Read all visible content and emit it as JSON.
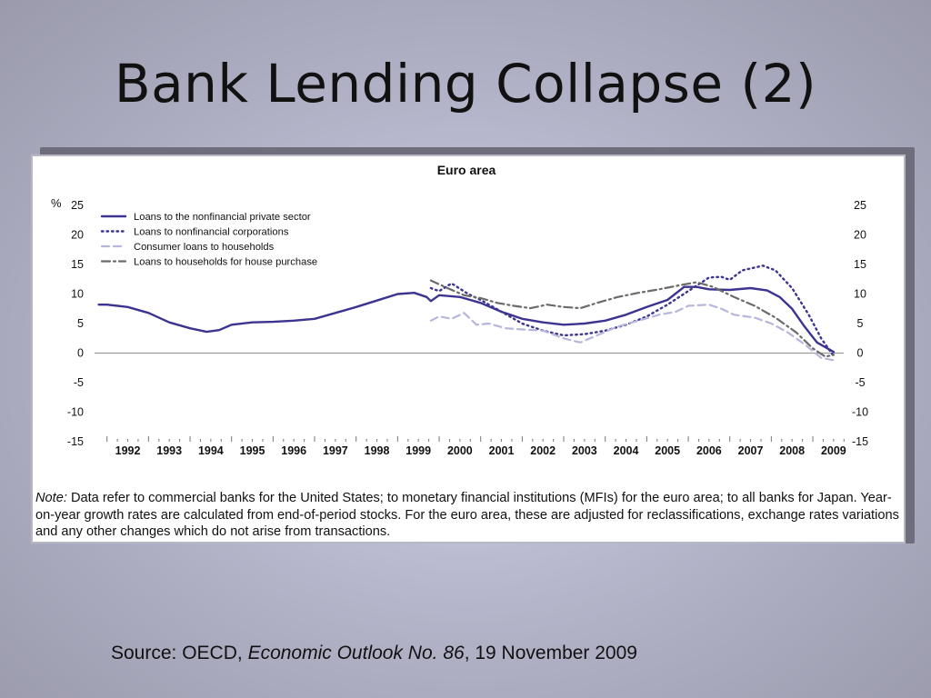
{
  "slide": {
    "title": "Bank Lending Collapse (2)",
    "source": {
      "prefix": "Source: OECD, ",
      "publication": "Economic Outlook No. 86",
      "suffix": ", 19 November 2009"
    }
  },
  "note": {
    "lead": "Note:",
    "text": " Data refer to commercial banks for the United States; to monetary financial institutions (MFIs) for the euro area; to all banks for Japan. Year-on-year growth rates are calculated from end-of-period stocks. For the euro area, these are adjusted for reclassifications, exchange rates variations and any other changes which do not arise from transactions."
  },
  "chart_data": {
    "type": "line",
    "title": "Euro area",
    "ylabel": "%",
    "xlim": [
      1991.7,
      2009.7
    ],
    "ylim": [
      -15,
      25
    ],
    "yticks": [
      25,
      20,
      15,
      10,
      5,
      0,
      -5,
      -10,
      -15
    ],
    "x_tick_labels": [
      "1992",
      "1993",
      "1994",
      "1995",
      "1996",
      "1997",
      "1998",
      "1999",
      "2000",
      "2001",
      "2002",
      "2003",
      "2004",
      "2005",
      "2006",
      "2007",
      "2008",
      "2009"
    ],
    "legend_position": "top-left",
    "grid": false,
    "zero_line": true,
    "colors": {
      "nonfinancial_private": "#3b3490",
      "nonfinancial_corporations": "#3b3490",
      "consumer": "#b6b6dc",
      "house_purchase": "#6a6a6a",
      "axis": "#888888",
      "text": "#111111"
    },
    "series": [
      {
        "name": "Loans to the nonfinancial private sector",
        "style": "solid",
        "points": [
          [
            1991.8,
            8.2
          ],
          [
            1992,
            8.2
          ],
          [
            1992.5,
            7.8
          ],
          [
            1993,
            6.8
          ],
          [
            1993.5,
            5.2
          ],
          [
            1994,
            4.2
          ],
          [
            1994.4,
            3.6
          ],
          [
            1994.7,
            3.9
          ],
          [
            1995,
            4.8
          ],
          [
            1995.5,
            5.2
          ],
          [
            1996,
            5.3
          ],
          [
            1996.5,
            5.5
          ],
          [
            1997,
            5.8
          ],
          [
            1997.5,
            6.8
          ],
          [
            1998,
            7.8
          ],
          [
            1998.5,
            8.9
          ],
          [
            1999,
            10.0
          ],
          [
            1999.4,
            10.2
          ],
          [
            1999.7,
            9.5
          ],
          [
            1999.8,
            8.8
          ],
          [
            2000,
            9.8
          ],
          [
            2000.5,
            9.5
          ],
          [
            2001,
            8.5
          ],
          [
            2001.5,
            7.0
          ],
          [
            2002,
            5.8
          ],
          [
            2002.5,
            5.2
          ],
          [
            2003,
            4.8
          ],
          [
            2003.5,
            5.0
          ],
          [
            2004,
            5.5
          ],
          [
            2004.5,
            6.5
          ],
          [
            2005,
            7.8
          ],
          [
            2005.5,
            9.0
          ],
          [
            2005.9,
            11.2
          ],
          [
            2006.2,
            11.2
          ],
          [
            2006.5,
            10.8
          ],
          [
            2007,
            10.7
          ],
          [
            2007.5,
            11.0
          ],
          [
            2007.9,
            10.6
          ],
          [
            2008.2,
            9.5
          ],
          [
            2008.5,
            7.5
          ],
          [
            2008.8,
            4.5
          ],
          [
            2009.1,
            1.8
          ],
          [
            2009.5,
            0.2
          ]
        ]
      },
      {
        "name": "Loans to nonfinancial corporations",
        "style": "dotted",
        "points": [
          [
            1999.8,
            11.0
          ],
          [
            2000,
            10.5
          ],
          [
            2000.3,
            11.8
          ],
          [
            2000.7,
            10.0
          ],
          [
            2001,
            9.0
          ],
          [
            2001.5,
            7.0
          ],
          [
            2002,
            5.0
          ],
          [
            2002.5,
            3.8
          ],
          [
            2003,
            3.0
          ],
          [
            2003.5,
            3.2
          ],
          [
            2004,
            3.8
          ],
          [
            2004.5,
            4.8
          ],
          [
            2005,
            6.2
          ],
          [
            2005.5,
            8.2
          ],
          [
            2006,
            10.5
          ],
          [
            2006.5,
            12.8
          ],
          [
            2006.8,
            12.9
          ],
          [
            2007,
            12.4
          ],
          [
            2007.3,
            14.0
          ],
          [
            2007.8,
            14.8
          ],
          [
            2008.1,
            14.0
          ],
          [
            2008.5,
            11.0
          ],
          [
            2008.9,
            6.5
          ],
          [
            2009.2,
            2.5
          ],
          [
            2009.5,
            -0.5
          ]
        ]
      },
      {
        "name": "Consumer loans to households",
        "style": "dashed",
        "points": [
          [
            1999.8,
            5.5
          ],
          [
            2000,
            6.2
          ],
          [
            2000.3,
            5.8
          ],
          [
            2000.6,
            6.8
          ],
          [
            2000.9,
            4.8
          ],
          [
            2001.2,
            5.0
          ],
          [
            2001.6,
            4.2
          ],
          [
            2002,
            4.0
          ],
          [
            2002.5,
            3.8
          ],
          [
            2003,
            2.5
          ],
          [
            2003.4,
            1.8
          ],
          [
            2003.8,
            3.0
          ],
          [
            2004.3,
            4.5
          ],
          [
            2004.8,
            5.5
          ],
          [
            2005.3,
            6.5
          ],
          [
            2005.7,
            7.0
          ],
          [
            2006,
            8.0
          ],
          [
            2006.5,
            8.2
          ],
          [
            2006.8,
            7.5
          ],
          [
            2007.1,
            6.5
          ],
          [
            2007.6,
            6.0
          ],
          [
            2008,
            5.0
          ],
          [
            2008.4,
            3.5
          ],
          [
            2008.8,
            1.5
          ],
          [
            2009.2,
            -0.8
          ],
          [
            2009.5,
            -1.2
          ]
        ]
      },
      {
        "name": "Loans to households for house purchase",
        "style": "dashdot",
        "points": [
          [
            1999.8,
            12.3
          ],
          [
            2000.2,
            11.0
          ],
          [
            2000.6,
            9.8
          ],
          [
            2001,
            9.3
          ],
          [
            2001.4,
            8.5
          ],
          [
            2001.8,
            8.0
          ],
          [
            2002.2,
            7.6
          ],
          [
            2002.6,
            8.2
          ],
          [
            2003,
            7.8
          ],
          [
            2003.4,
            7.6
          ],
          [
            2003.8,
            8.5
          ],
          [
            2004.3,
            9.5
          ],
          [
            2004.8,
            10.2
          ],
          [
            2005.3,
            10.8
          ],
          [
            2005.8,
            11.5
          ],
          [
            2006.2,
            12.0
          ],
          [
            2006.6,
            11.2
          ],
          [
            2007.1,
            9.5
          ],
          [
            2007.6,
            8.0
          ],
          [
            2008.1,
            6.0
          ],
          [
            2008.6,
            3.5
          ],
          [
            2009,
            0.8
          ],
          [
            2009.3,
            -0.6
          ],
          [
            2009.5,
            -0.3
          ]
        ]
      }
    ]
  }
}
